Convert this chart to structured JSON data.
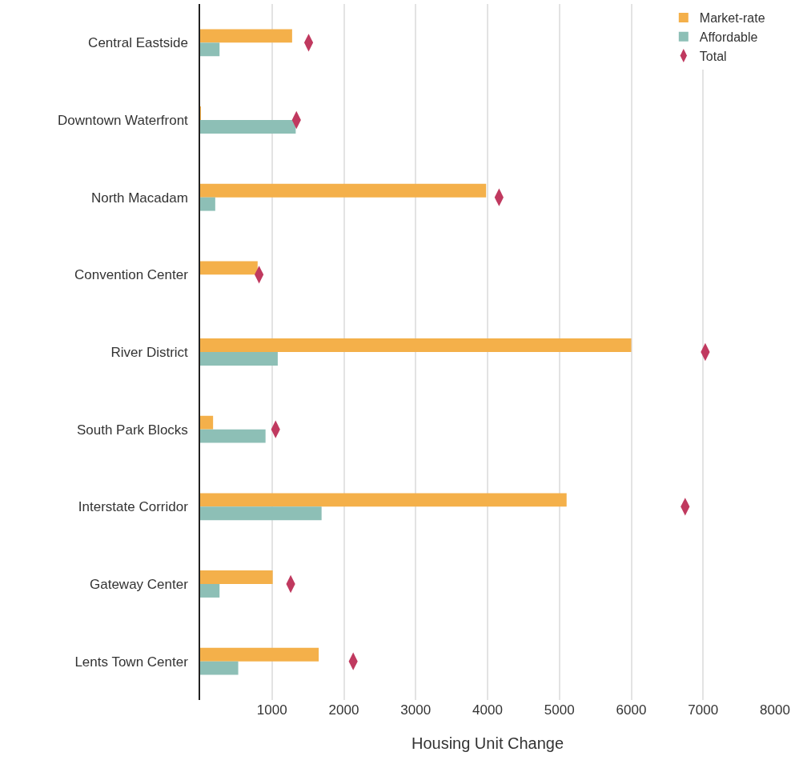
{
  "chart_data": {
    "type": "bar",
    "orientation": "horizontal",
    "xlabel": "Housing Unit Change",
    "categories": [
      "Central Eastside",
      "Downtown Waterfront",
      "North Macadam",
      "Convention Center",
      "River District",
      "South Park Blocks",
      "Interstate Corridor",
      "Gateway Center",
      "Lents Town Center"
    ],
    "series": [
      {
        "name": "Market-rate",
        "color": "#f4b04a",
        "values": [
          1280,
          10,
          3980,
          800,
          6000,
          180,
          5100,
          1010,
          1650
        ]
      },
      {
        "name": "Affordable",
        "color": "#8dbfb6",
        "values": [
          270,
          1330,
          210,
          0,
          1080,
          910,
          1690,
          270,
          530
        ]
      },
      {
        "name": "Total",
        "type": "scatter",
        "marker": "diamond",
        "color": "#c0395f",
        "values": [
          1510,
          1340,
          4160,
          820,
          7030,
          1050,
          6750,
          1260,
          2130
        ]
      }
    ],
    "xlim": [
      0,
      8000
    ],
    "xticks": [
      1000,
      2000,
      3000,
      4000,
      5000,
      6000,
      7000,
      8000
    ],
    "grid": "x",
    "legend": "top right"
  }
}
